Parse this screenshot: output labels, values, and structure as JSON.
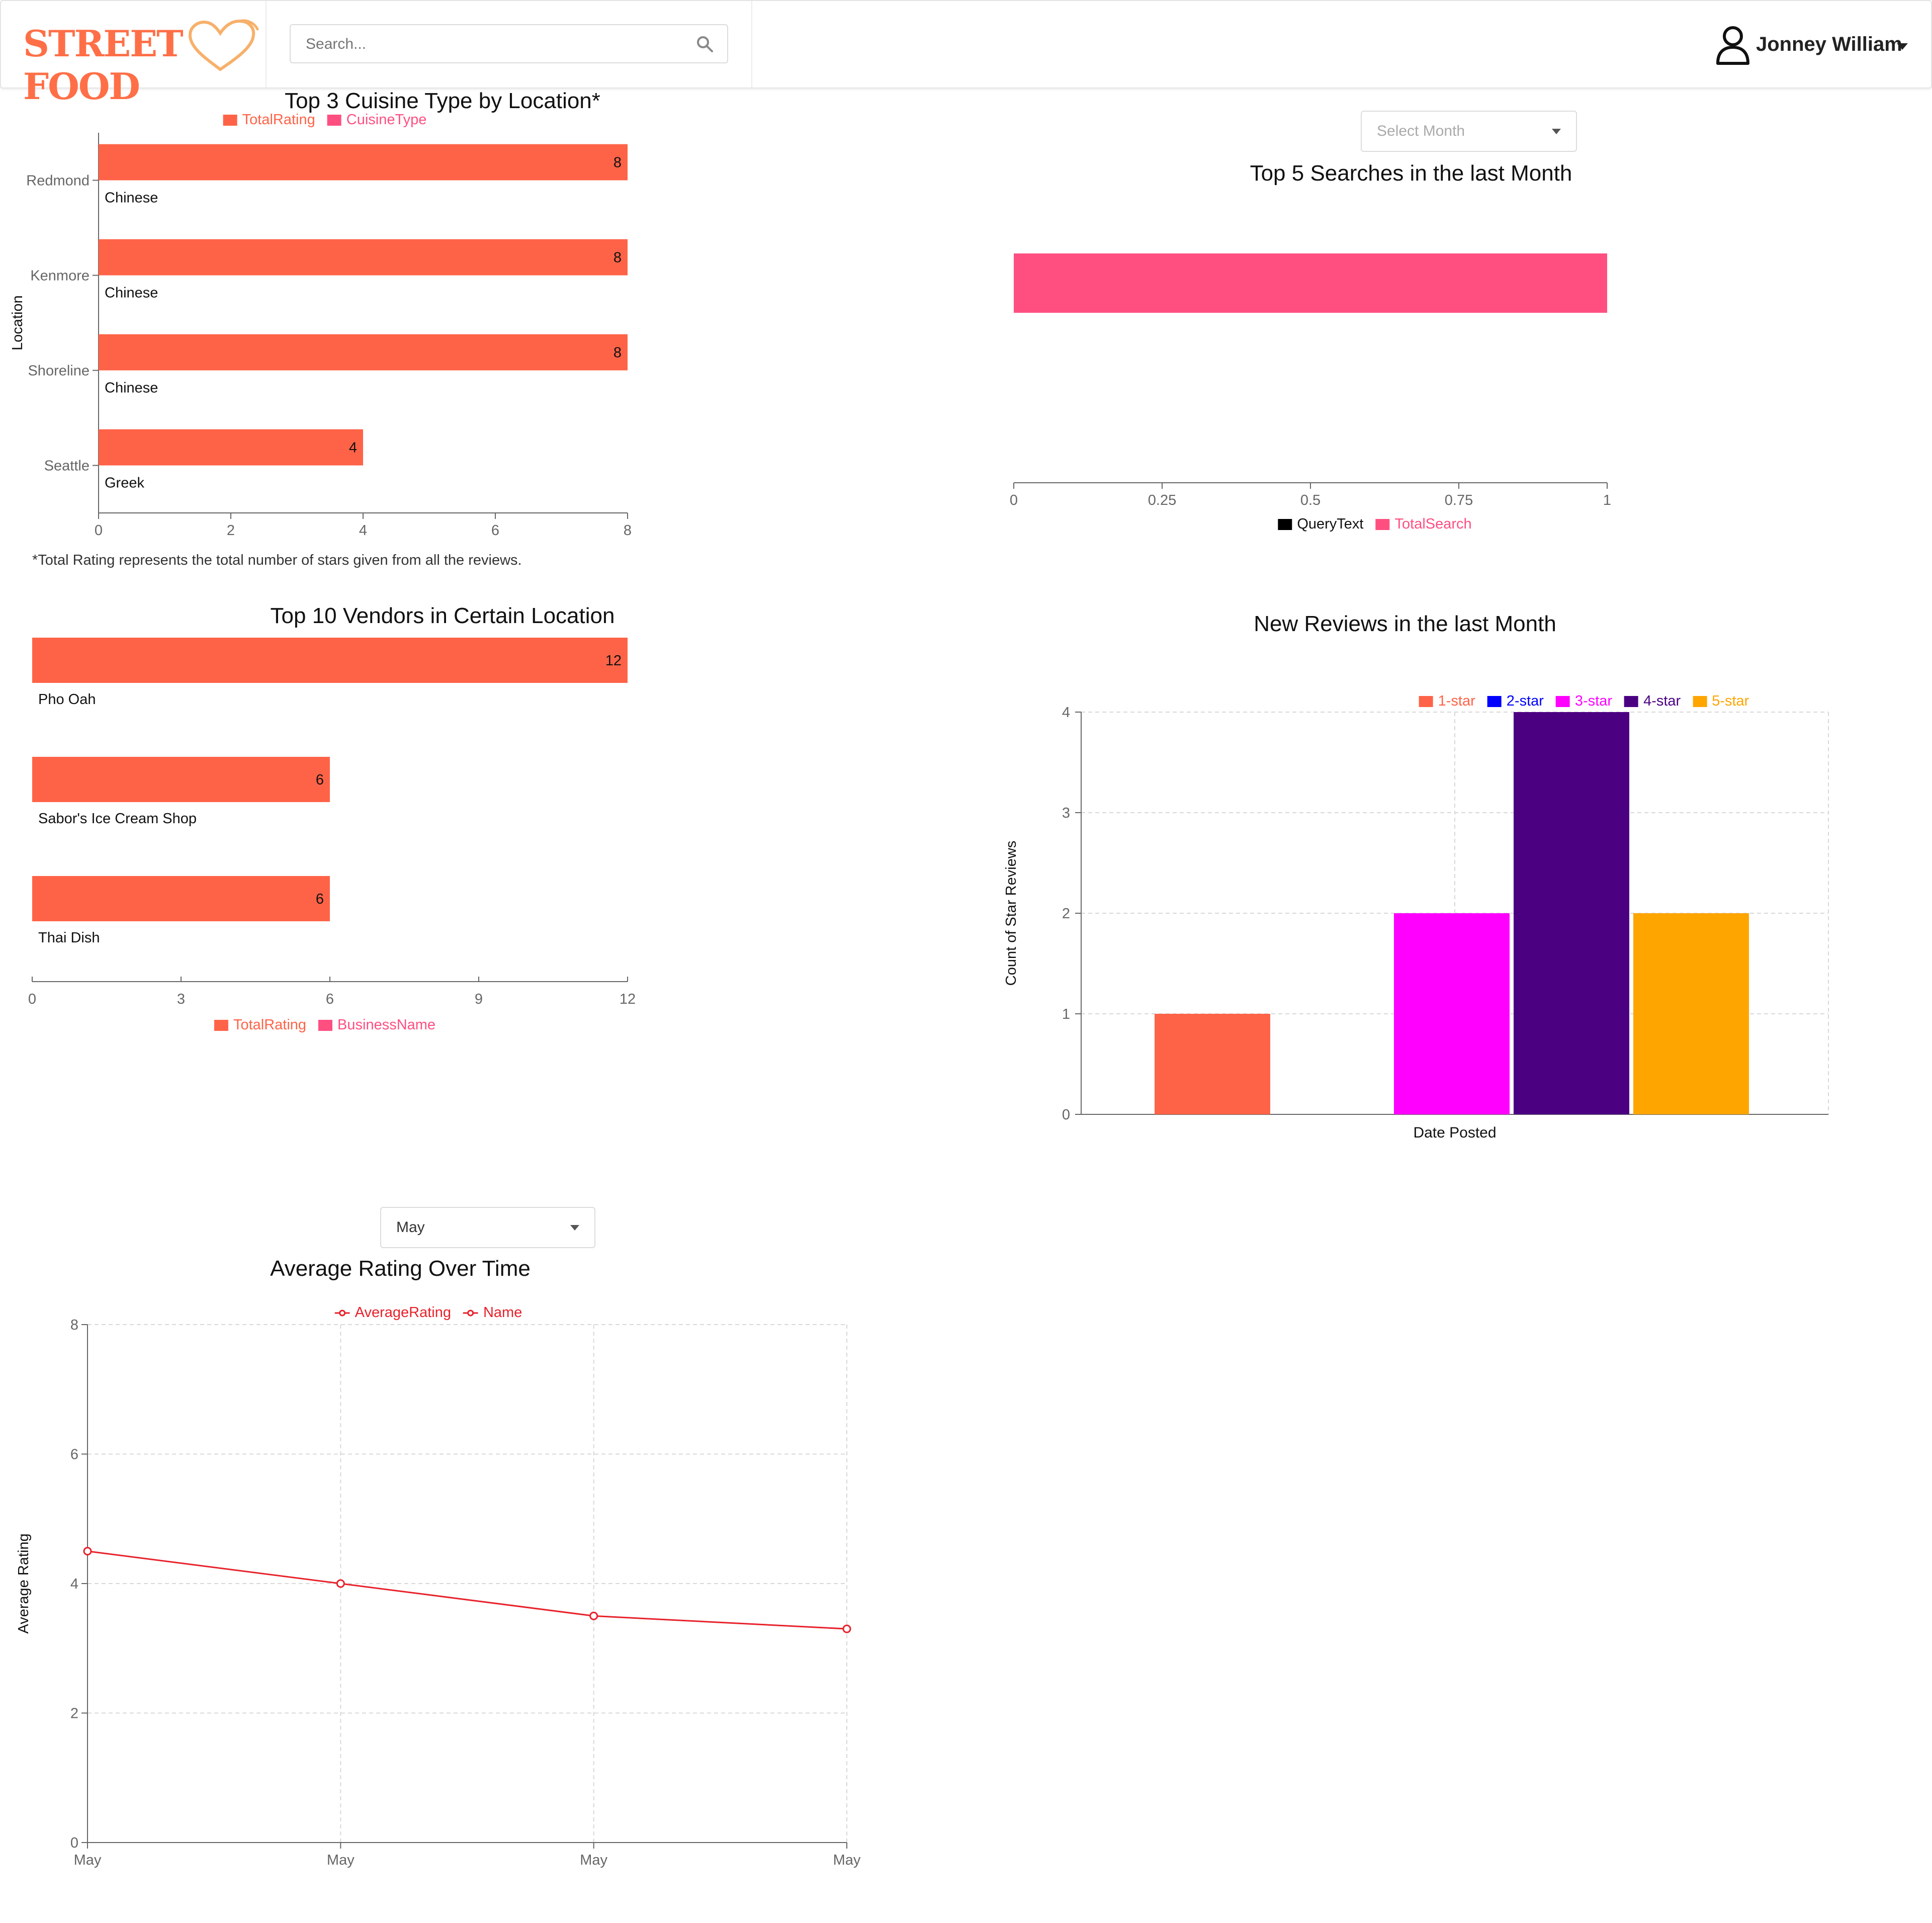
{
  "header": {
    "logo_text": "STREET FOOD",
    "search_placeholder": "Search...",
    "user_name": "Jonney William"
  },
  "colors": {
    "accent": "#ff6347",
    "pink": "#ff4f81",
    "logo": "#ff6f47",
    "magenta": "#ff00ff",
    "blue": "#0000ff",
    "indigo": "#4b0082",
    "orange": "#ffa500",
    "line": "#e8212b",
    "axis": "#666666"
  },
  "charts": {
    "cuisine": {
      "title": "Top 3 Cuisine Type by Location*",
      "footnote": "*Total Rating represents the total number of stars given from all the reviews.",
      "legend": [
        "TotalRating",
        "CuisineType"
      ],
      "ylabel": "Location"
    },
    "searches": {
      "select_placeholder": "Select Month",
      "title": "Top 5 Searches in the last Month",
      "legend": [
        "QueryText",
        "TotalSearch"
      ]
    },
    "vendors": {
      "title": "Top 10 Vendors in Certain Location",
      "legend": [
        "TotalRating",
        "BusinessName"
      ]
    },
    "reviews": {
      "title": "New Reviews in the last Month",
      "legend": [
        "1-star",
        "2-star",
        "3-star",
        "4-star",
        "5-star"
      ],
      "xlabel": "Date Posted",
      "ylabel": "Count of Star Reviews"
    },
    "avg": {
      "select_value": "May",
      "title": "Average Rating Over Time",
      "legend": [
        "AverageRating",
        "Name"
      ],
      "ylabel": "Average Rating"
    }
  },
  "chart_data": [
    {
      "id": "cuisine",
      "type": "bar",
      "orientation": "horizontal",
      "categories": [
        "Redmond",
        "Kenmore",
        "Shoreline",
        "Seattle"
      ],
      "values": [
        8,
        8,
        8,
        4
      ],
      "bar_labels": [
        "Chinese",
        "Chinese",
        "Chinese",
        "Greek"
      ],
      "xlim": [
        0,
        8
      ],
      "xticks": [
        0,
        2,
        4,
        6,
        8
      ],
      "grid": false
    },
    {
      "id": "searches",
      "type": "bar",
      "orientation": "horizontal",
      "categories": [
        ""
      ],
      "values": [
        1
      ],
      "xlim": [
        0,
        1
      ],
      "xticks": [
        "0",
        "0.25",
        "0.5",
        "0.75",
        "1"
      ],
      "grid": false
    },
    {
      "id": "vendors",
      "type": "bar",
      "orientation": "horizontal",
      "categories": [
        "Pho Oah",
        "Sabor's Ice Cream Shop",
        "Thai Dish"
      ],
      "values": [
        12,
        6,
        6
      ],
      "xlim": [
        0,
        12
      ],
      "xticks": [
        0,
        3,
        6,
        9,
        12
      ],
      "grid": false
    },
    {
      "id": "reviews",
      "type": "bar",
      "categories": [
        ""
      ],
      "series": [
        {
          "name": "1-star",
          "values": [
            1
          ]
        },
        {
          "name": "2-star",
          "values": [
            0
          ]
        },
        {
          "name": "3-star",
          "values": [
            2
          ]
        },
        {
          "name": "4-star",
          "values": [
            4
          ]
        },
        {
          "name": "5-star",
          "values": [
            2
          ]
        }
      ],
      "ylim": [
        0,
        4
      ],
      "yticks": [
        0,
        1,
        2,
        3,
        4
      ],
      "grid": true,
      "legend_position": "top"
    },
    {
      "id": "avg",
      "type": "line",
      "x": [
        "May",
        "May",
        "May",
        "May"
      ],
      "series": [
        {
          "name": "AverageRating",
          "values": [
            4.5,
            4.0,
            3.5,
            3.3
          ]
        }
      ],
      "ylim": [
        0,
        8
      ],
      "yticks": [
        0,
        2,
        4,
        6,
        8
      ],
      "grid": true,
      "legend_position": "top"
    }
  ]
}
